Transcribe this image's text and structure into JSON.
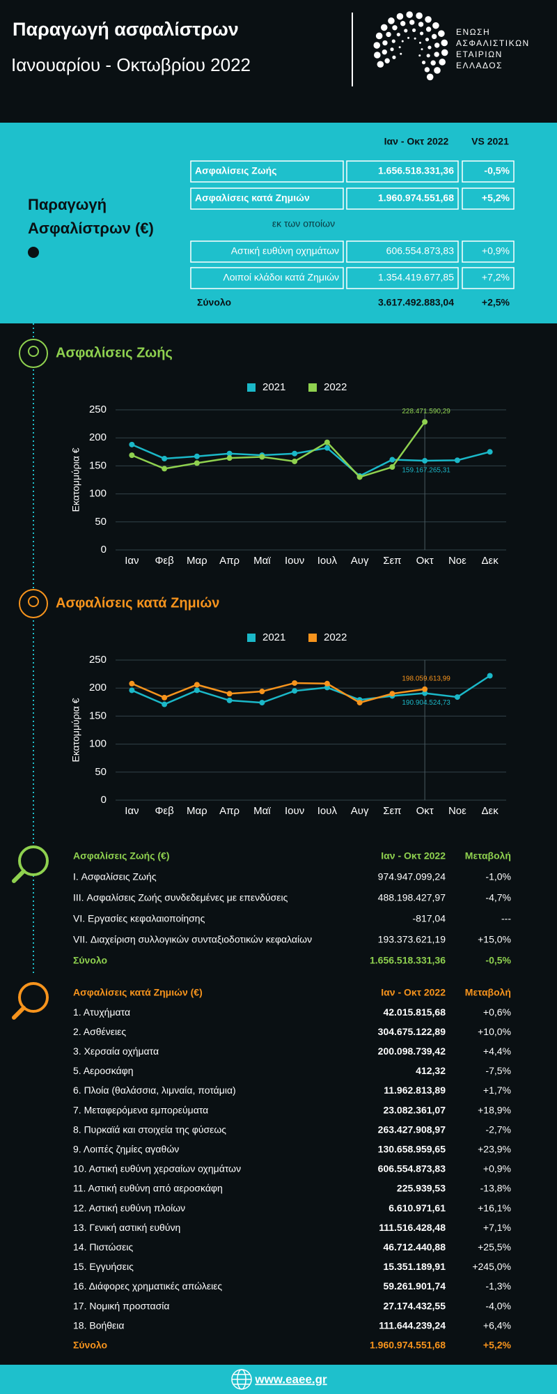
{
  "header": {
    "title": "Παραγωγή ασφαλίστρων",
    "subtitle": "Ιανουαρίου - Οκτωβρίου 2022",
    "logo_lines": [
      "ΕΝΩΣΗ",
      "ΑΣΦΑΛΙΣΤΙΚΩΝ",
      "ΕΤΑΙΡΙΩΝ",
      "ΕΛΛΑΔΟΣ"
    ]
  },
  "summary": {
    "title_lines": [
      "Παραγωγή",
      "Ασφαλίστρων (€)"
    ],
    "columns": [
      "Ιαν - Οκτ 2022",
      "VS 2021"
    ],
    "rows": [
      [
        "Ασφαλίσεις Ζωής",
        "1.656.518.331,36",
        "-0,5%"
      ],
      [
        "Ασφαλίσεις κατά Ζημιών",
        "1.960.974.551,68",
        "+5,2%"
      ]
    ],
    "subheading": "εκ των οποίων",
    "subrows": [
      [
        "Αστική ευθύνη οχημάτων",
        "606.554.873,83",
        "+0,9%"
      ],
      [
        "Λοιποί κλάδοι κατά Ζημιών",
        "1.354.419.677,85",
        "+7,2%"
      ]
    ],
    "total": [
      "Σύνολο",
      "3.617.492.883,04",
      "+2,5%"
    ]
  },
  "chart_data": [
    {
      "type": "line",
      "title": "Ασφαλίσεις Ζωής",
      "y_label": "Εκατομμύρια €",
      "categories": [
        "Ιαν",
        "Φεβ",
        "Μαρ",
        "Απρ",
        "Μαϊ",
        "Ιουν",
        "Ιουλ",
        "Αυγ",
        "Σεπ",
        "Οκτ",
        "Νοε",
        "Δεκ"
      ],
      "series": [
        {
          "name": "2021",
          "color": "#1bb8c8",
          "values": [
            188,
            163,
            167,
            172,
            169,
            172,
            182,
            132,
            161,
            159.16726531,
            160,
            175
          ],
          "value_labels": [
            null,
            null,
            null,
            null,
            null,
            null,
            null,
            null,
            null,
            "159.167.265,31",
            null,
            null
          ]
        },
        {
          "name": "2022",
          "color": "#8fd14f",
          "values": [
            169,
            145,
            155,
            164,
            166,
            158,
            192,
            130,
            148,
            228.47159029,
            null,
            null
          ],
          "value_labels": [
            null,
            null,
            null,
            null,
            null,
            null,
            null,
            null,
            null,
            "228.471.590,29",
            null,
            null
          ]
        }
      ],
      "ylim": [
        0,
        250
      ],
      "yticks": [
        0,
        50,
        100,
        150,
        200,
        250
      ],
      "grid": true,
      "accent": "#8fd14f"
    },
    {
      "type": "line",
      "title": "Ασφαλίσεις κατά Ζημιών",
      "y_label": "Εκατομμύρια €",
      "categories": [
        "Ιαν",
        "Φεβ",
        "Μαρ",
        "Απρ",
        "Μαϊ",
        "Ιουν",
        "Ιουλ",
        "Αυγ",
        "Σεπ",
        "Οκτ",
        "Νοε",
        "Δεκ"
      ],
      "series": [
        {
          "name": "2021",
          "color": "#1bb8c8",
          "values": [
            196,
            171,
            196,
            178,
            174,
            195,
            201,
            179,
            186,
            190.90452473,
            184,
            222
          ],
          "value_labels": [
            null,
            null,
            null,
            null,
            null,
            null,
            null,
            null,
            null,
            "190.904.524,73",
            null,
            null
          ]
        },
        {
          "name": "2022",
          "color": "#f7941d",
          "values": [
            208,
            183,
            206,
            190,
            194,
            209,
            208,
            174,
            190,
            198.05961399,
            null,
            null
          ],
          "value_labels": [
            null,
            null,
            null,
            null,
            null,
            null,
            null,
            null,
            null,
            "198.059.613,99",
            null,
            null
          ]
        }
      ],
      "ylim": [
        0,
        250
      ],
      "yticks": [
        0,
        50,
        100,
        150,
        200,
        250
      ],
      "grid": true,
      "accent": "#f7941d"
    }
  ],
  "tables": {
    "life": {
      "color": "#8fd14f",
      "columns": [
        "Ασφαλίσεις Ζωής (€)",
        "Ιαν - Οκτ 2022",
        "Μεταβολή"
      ],
      "rows": [
        [
          "I. Ασφαλίσεις  Ζωής",
          "974.947.099,24",
          "-1,0%"
        ],
        [
          "III. Ασφαλίσεις  Ζωής  συνδεδεμένες με επενδύσεις",
          "488.198.427,97",
          "-4,7%"
        ],
        [
          "VI. Εργασίες κεφαλαιοποίησης",
          "-817,04",
          "---"
        ],
        [
          "VII. Διαχείριση συλλογικών συνταξιοδοτικών κεφαλαίων",
          "193.373.621,19",
          "+15,0%"
        ]
      ],
      "total": [
        "Σύνολο",
        "1.656.518.331,36",
        "-0,5%"
      ]
    },
    "nonlife": {
      "color": "#f7941d",
      "columns": [
        "Ασφαλίσεις κατά Ζημιών (€)",
        "Ιαν - Οκτ 2022",
        "Μεταβολή"
      ],
      "rows": [
        [
          "1. Ατυχήματα",
          "42.015.815,68",
          "+0,6%"
        ],
        [
          "2. Ασθένειες",
          "304.675.122,89",
          "+10,0%"
        ],
        [
          "3. Χερσαία οχήματα",
          "200.098.739,42",
          "+4,4%"
        ],
        [
          "5. Αεροσκάφη",
          "412,32",
          "-7,5%"
        ],
        [
          "6. Πλοία (θαλάσσια, λιμναία, ποτάμια)",
          "11.962.813,89",
          "+1,7%"
        ],
        [
          "7. Μεταφερόμενα εμπορεύματα",
          "23.082.361,07",
          "+18,9%"
        ],
        [
          "8. Πυρκαϊά και στοιχεία της φύσεως",
          "263.427.908,97",
          "-2,7%"
        ],
        [
          "9. Λοιπές ζημίες αγαθών",
          "130.658.959,65",
          "+23,9%"
        ],
        [
          "10. Αστική ευθύνη χερσαίων οχημάτων",
          "606.554.873,83",
          "+0,9%"
        ],
        [
          "11. Αστική ευθύνη από αεροσκάφη",
          "225.939,53",
          "-13,8%"
        ],
        [
          "12. Αστική ευθύνη πλοίων",
          "6.610.971,61",
          "+16,1%"
        ],
        [
          "13. Γενική αστική ευθύνη",
          "111.516.428,48",
          "+7,1%"
        ],
        [
          "14. Πιστώσεις",
          "46.712.440,88",
          "+25,5%"
        ],
        [
          "15. Εγγυήσεις",
          "15.351.189,91",
          "+245,0%"
        ],
        [
          "16. Διάφορες χρηματικές απώλειες",
          "59.261.901,74",
          "-1,3%"
        ],
        [
          "17. Νομική προστασία",
          "27.174.432,55",
          "-4,0%"
        ],
        [
          "18. Βοήθεια",
          "111.644.239,24",
          "+6,4%"
        ]
      ],
      "total": [
        "Σύνολο",
        "1.960.974.551,68",
        "+5,2%"
      ]
    }
  },
  "footer": {
    "link": "www.eaee.gr"
  }
}
